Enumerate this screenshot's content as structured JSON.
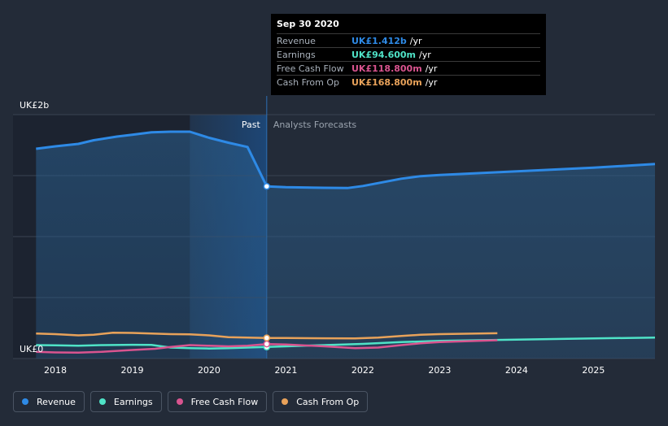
{
  "chart_data": {
    "type": "line",
    "y_axis": {
      "top_label": "UK£2b",
      "bottom_label": "UK£0",
      "ylim": [
        0,
        2.0
      ]
    },
    "x_ticks": [
      "2018",
      "2019",
      "2020",
      "2021",
      "2022",
      "2023",
      "2024",
      "2025"
    ],
    "xlim": [
      2017.45,
      2025.8
    ],
    "sections": {
      "past_label": "Past",
      "forecast_label": "Analysts Forecasts",
      "divider_x": 2020.75,
      "highlight_start": 2019.75
    },
    "series": [
      {
        "name": "Revenue",
        "key": "revenue",
        "color": "#2e8ae6",
        "values": [
          [
            2017.75,
            1.72
          ],
          [
            2018.0,
            1.74
          ],
          [
            2018.3,
            1.76
          ],
          [
            2018.5,
            1.79
          ],
          [
            2018.8,
            1.82
          ],
          [
            2019.0,
            1.835
          ],
          [
            2019.25,
            1.855
          ],
          [
            2019.5,
            1.86
          ],
          [
            2019.75,
            1.86
          ],
          [
            2020.0,
            1.81
          ],
          [
            2020.25,
            1.77
          ],
          [
            2020.5,
            1.735
          ],
          [
            2020.75,
            1.412
          ]
        ],
        "forecast": [
          [
            2020.75,
            1.412
          ],
          [
            2021.0,
            1.405
          ],
          [
            2021.5,
            1.4
          ],
          [
            2021.8,
            1.398
          ],
          [
            2022.0,
            1.415
          ],
          [
            2022.25,
            1.445
          ],
          [
            2022.5,
            1.475
          ],
          [
            2022.75,
            1.495
          ],
          [
            2023.0,
            1.505
          ],
          [
            2023.5,
            1.52
          ],
          [
            2024.0,
            1.535
          ],
          [
            2024.5,
            1.55
          ],
          [
            2025.0,
            1.565
          ],
          [
            2025.8,
            1.595
          ]
        ]
      },
      {
        "name": "Earnings",
        "key": "earnings",
        "color": "#4fe3c7",
        "values": [
          [
            2017.75,
            0.11
          ],
          [
            2018.0,
            0.108
          ],
          [
            2018.3,
            0.105
          ],
          [
            2018.6,
            0.11
          ],
          [
            2019.0,
            0.113
          ],
          [
            2019.25,
            0.112
          ],
          [
            2019.5,
            0.09
          ],
          [
            2019.75,
            0.085
          ],
          [
            2020.0,
            0.082
          ],
          [
            2020.25,
            0.085
          ],
          [
            2020.5,
            0.09
          ],
          [
            2020.75,
            0.0946
          ]
        ],
        "forecast": [
          [
            2020.75,
            0.0946
          ],
          [
            2021.0,
            0.1
          ],
          [
            2021.5,
            0.11
          ],
          [
            2022.0,
            0.12
          ],
          [
            2022.5,
            0.135
          ],
          [
            2023.0,
            0.145
          ],
          [
            2023.5,
            0.15
          ],
          [
            2024.0,
            0.155
          ],
          [
            2024.5,
            0.16
          ],
          [
            2025.0,
            0.165
          ],
          [
            2025.8,
            0.172
          ]
        ]
      },
      {
        "name": "Free Cash Flow",
        "key": "fcf",
        "color": "#d9548f",
        "values": [
          [
            2017.75,
            0.055
          ],
          [
            2018.0,
            0.05
          ],
          [
            2018.3,
            0.048
          ],
          [
            2018.6,
            0.055
          ],
          [
            2019.0,
            0.07
          ],
          [
            2019.3,
            0.08
          ],
          [
            2019.5,
            0.095
          ],
          [
            2019.75,
            0.11
          ],
          [
            2020.0,
            0.105
          ],
          [
            2020.25,
            0.1
          ],
          [
            2020.5,
            0.105
          ],
          [
            2020.75,
            0.1188
          ]
        ],
        "forecast": [
          [
            2020.75,
            0.1188
          ],
          [
            2021.0,
            0.115
          ],
          [
            2021.5,
            0.1
          ],
          [
            2021.9,
            0.085
          ],
          [
            2022.2,
            0.09
          ],
          [
            2022.5,
            0.11
          ],
          [
            2022.75,
            0.125
          ],
          [
            2023.0,
            0.135
          ],
          [
            2023.5,
            0.145
          ],
          [
            2023.75,
            0.15
          ]
        ]
      },
      {
        "name": "Cash From Op",
        "key": "cfo",
        "color": "#e8a25a",
        "values": [
          [
            2017.75,
            0.205
          ],
          [
            2018.0,
            0.2
          ],
          [
            2018.3,
            0.19
          ],
          [
            2018.5,
            0.195
          ],
          [
            2018.75,
            0.212
          ],
          [
            2019.0,
            0.21
          ],
          [
            2019.25,
            0.205
          ],
          [
            2019.5,
            0.2
          ],
          [
            2019.75,
            0.198
          ],
          [
            2020.0,
            0.19
          ],
          [
            2020.25,
            0.175
          ],
          [
            2020.5,
            0.172
          ],
          [
            2020.75,
            0.1688
          ]
        ],
        "forecast": [
          [
            2020.75,
            0.1688
          ],
          [
            2021.0,
            0.168
          ],
          [
            2021.5,
            0.166
          ],
          [
            2021.9,
            0.165
          ],
          [
            2022.2,
            0.172
          ],
          [
            2022.5,
            0.185
          ],
          [
            2022.75,
            0.195
          ],
          [
            2023.0,
            0.2
          ],
          [
            2023.5,
            0.205
          ],
          [
            2023.75,
            0.207
          ]
        ]
      }
    ]
  },
  "tooltip": {
    "date": "Sep 30 2020",
    "unit": "/yr",
    "rows": [
      {
        "name": "Revenue",
        "value": "UK£1.412b",
        "color": "#2e8ae6"
      },
      {
        "name": "Earnings",
        "value": "UK£94.600m",
        "color": "#4fe3c7"
      },
      {
        "name": "Free Cash Flow",
        "value": "UK£118.800m",
        "color": "#d9548f"
      },
      {
        "name": "Cash From Op",
        "value": "UK£168.800m",
        "color": "#e8a25a"
      }
    ]
  },
  "legend": [
    {
      "label": "Revenue",
      "color": "#2e8ae6"
    },
    {
      "label": "Earnings",
      "color": "#4fe3c7"
    },
    {
      "label": "Free Cash Flow",
      "color": "#d9548f"
    },
    {
      "label": "Cash From Op",
      "color": "#e8a25a"
    }
  ]
}
